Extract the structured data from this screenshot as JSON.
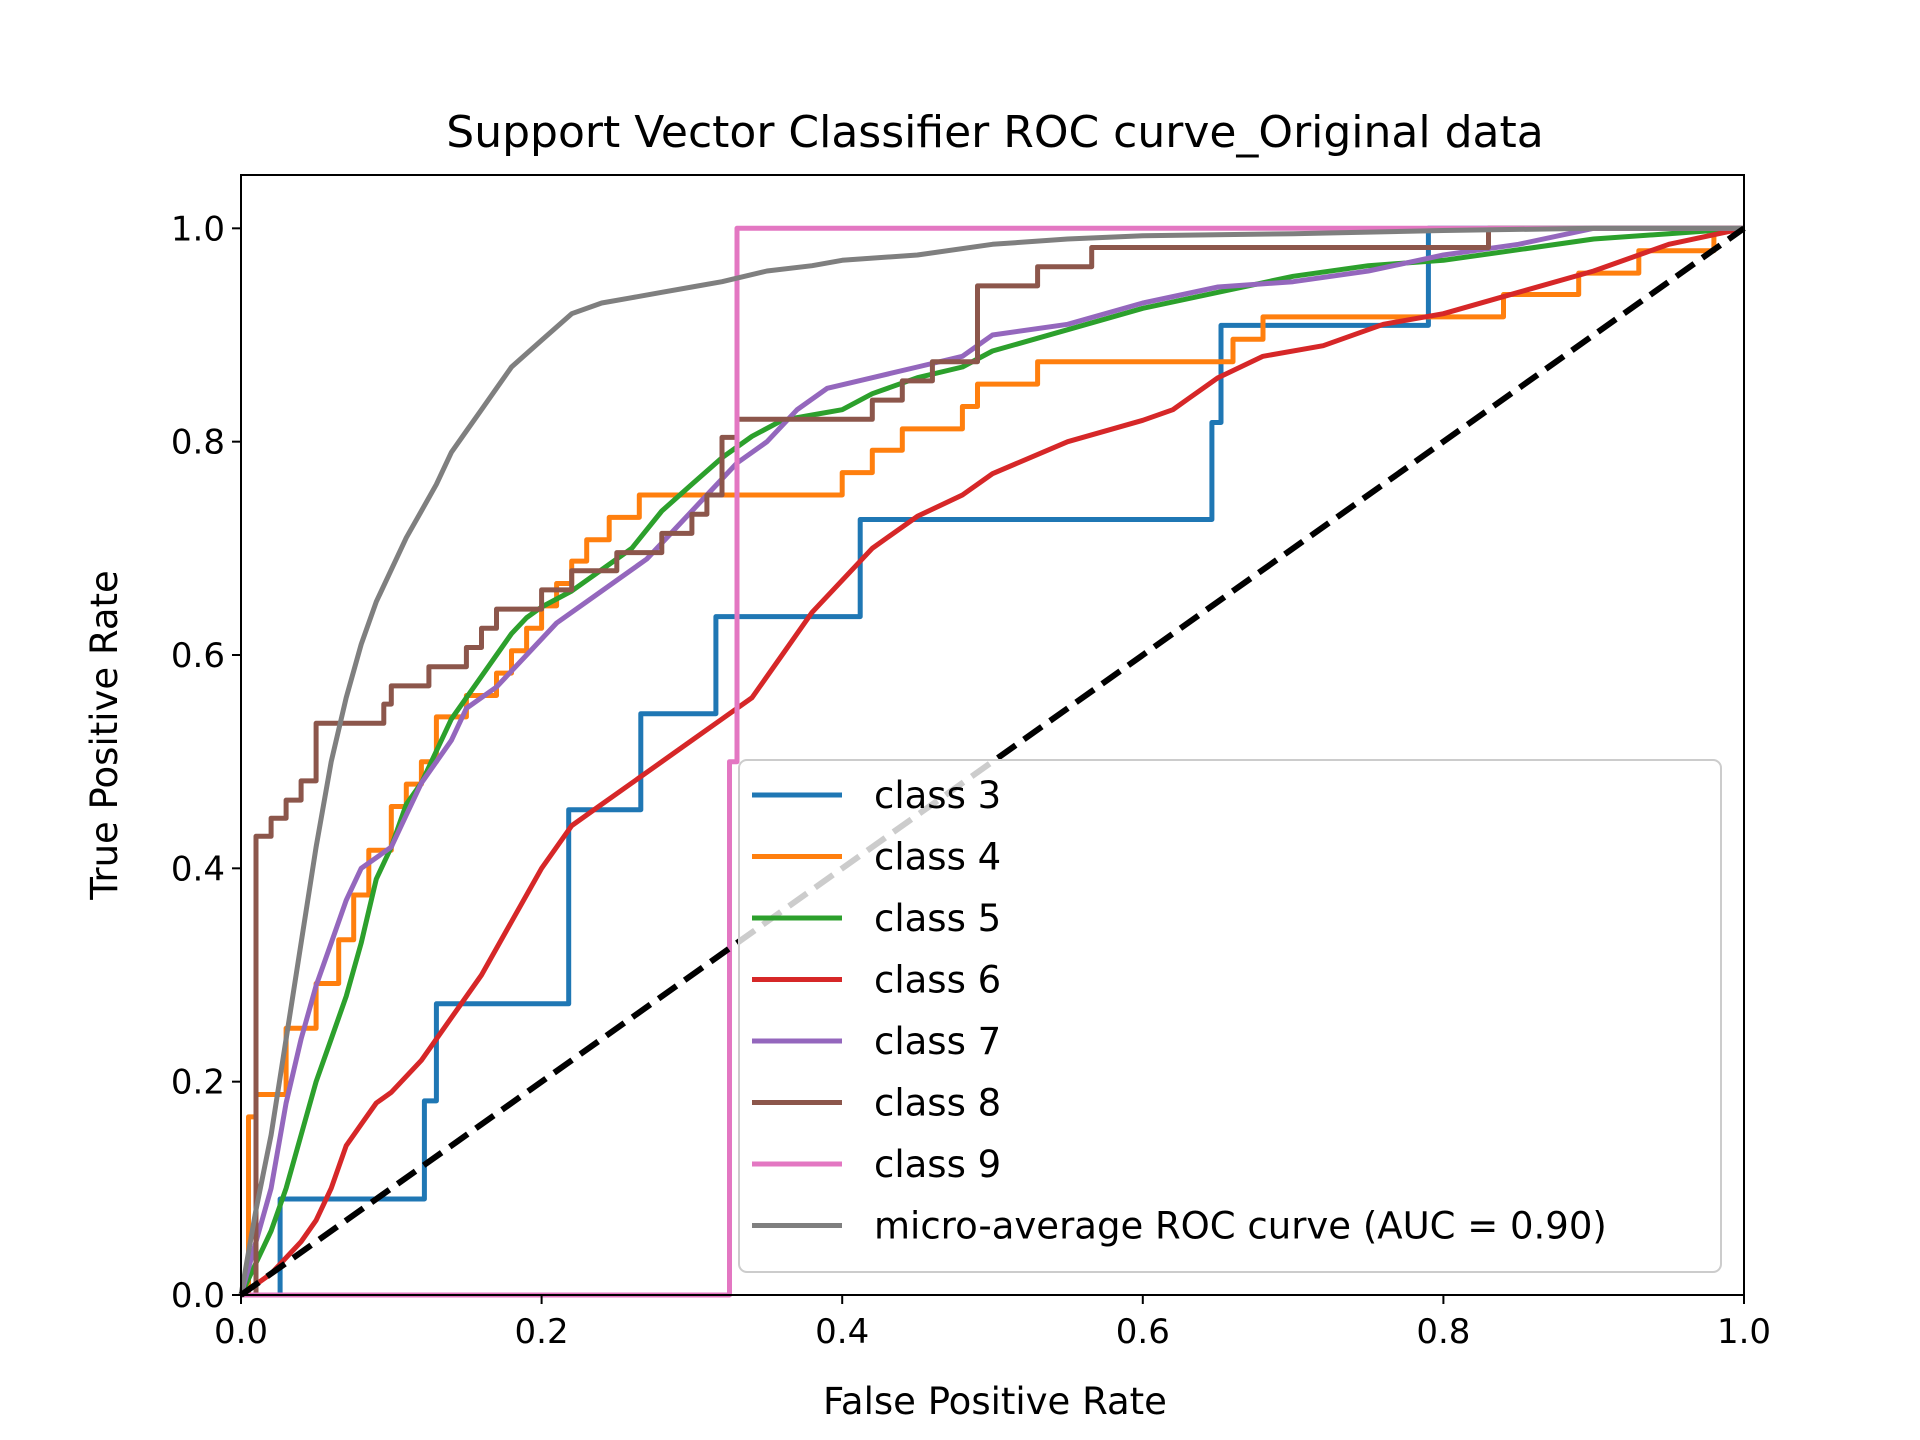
{
  "chart_data": {
    "type": "line",
    "title": "Support Vector Classifier ROC curve_Original data",
    "xlabel": "False Positive Rate",
    "ylabel": "True Positive Rate",
    "xlim": [
      0.0,
      1.0
    ],
    "ylim": [
      0.0,
      1.05
    ],
    "xticks": [
      "0.0",
      "0.2",
      "0.4",
      "0.6",
      "0.8",
      "1.0"
    ],
    "yticks": [
      "0.0",
      "0.2",
      "0.4",
      "0.6",
      "0.8",
      "1.0"
    ],
    "grid": false,
    "legend_position": "lower-right",
    "diagonal": {
      "x": [
        0,
        1
      ],
      "y": [
        0,
        1
      ],
      "color": "#000000",
      "style": "dashed"
    },
    "series": [
      {
        "name": "class 3",
        "color": "#1f77b4",
        "x": [
          0,
          0.026,
          0.026,
          0.122,
          0.122,
          0.13,
          0.13,
          0.218,
          0.218,
          0.266,
          0.266,
          0.316,
          0.316,
          0.328,
          0.328,
          0.41,
          0.41,
          0.412,
          0.412,
          0.646,
          0.646,
          0.652,
          0.652,
          0.79,
          0.79,
          1.0
        ],
        "y": [
          0,
          0,
          0.09,
          0.09,
          0.182,
          0.182,
          0.273,
          0.273,
          0.455,
          0.455,
          0.545,
          0.545,
          0.636,
          0.636,
          0.636,
          0.636,
          0.636,
          0.636,
          0.727,
          0.727,
          0.818,
          0.818,
          0.909,
          0.909,
          1.0,
          1.0
        ]
      },
      {
        "name": "class 4",
        "color": "#ff7f0e",
        "x": [
          0,
          0.005,
          0.005,
          0.01,
          0.01,
          0.03,
          0.03,
          0.05,
          0.05,
          0.065,
          0.065,
          0.075,
          0.075,
          0.085,
          0.085,
          0.1,
          0.1,
          0.11,
          0.11,
          0.12,
          0.12,
          0.13,
          0.13,
          0.15,
          0.15,
          0.17,
          0.17,
          0.18,
          0.18,
          0.19,
          0.19,
          0.2,
          0.2,
          0.21,
          0.21,
          0.22,
          0.22,
          0.23,
          0.23,
          0.245,
          0.245,
          0.255,
          0.255,
          0.265,
          0.265,
          0.28,
          0.28,
          0.4,
          0.4,
          0.42,
          0.42,
          0.44,
          0.44,
          0.48,
          0.48,
          0.49,
          0.49,
          0.5,
          0.5,
          0.51,
          0.51,
          0.53,
          0.53,
          0.65,
          0.65,
          0.66,
          0.66,
          0.68,
          0.68,
          0.74,
          0.74,
          0.84,
          0.84,
          0.89,
          0.89,
          0.93,
          0.93,
          0.98,
          0.98,
          1.0
        ],
        "y": [
          0,
          0,
          0.167,
          0.167,
          0.188,
          0.188,
          0.25,
          0.25,
          0.292,
          0.292,
          0.333,
          0.333,
          0.375,
          0.375,
          0.417,
          0.417,
          0.458,
          0.458,
          0.479,
          0.479,
          0.5,
          0.5,
          0.542,
          0.542,
          0.562,
          0.562,
          0.583,
          0.583,
          0.604,
          0.604,
          0.625,
          0.625,
          0.646,
          0.646,
          0.667,
          0.667,
          0.688,
          0.688,
          0.708,
          0.708,
          0.729,
          0.729,
          0.729,
          0.729,
          0.75,
          0.75,
          0.75,
          0.75,
          0.771,
          0.771,
          0.792,
          0.792,
          0.812,
          0.812,
          0.833,
          0.833,
          0.854,
          0.854,
          0.854,
          0.854,
          0.854,
          0.854,
          0.875,
          0.875,
          0.875,
          0.875,
          0.896,
          0.896,
          0.917,
          0.917,
          0.917,
          0.917,
          0.938,
          0.938,
          0.958,
          0.958,
          0.979,
          0.979,
          1.0,
          1.0
        ]
      },
      {
        "name": "class 5",
        "color": "#2ca02c",
        "x": [
          0,
          0.01,
          0.02,
          0.03,
          0.04,
          0.05,
          0.06,
          0.07,
          0.08,
          0.09,
          0.1,
          0.11,
          0.12,
          0.13,
          0.14,
          0.15,
          0.16,
          0.17,
          0.18,
          0.19,
          0.2,
          0.22,
          0.24,
          0.26,
          0.28,
          0.3,
          0.32,
          0.34,
          0.36,
          0.38,
          0.4,
          0.42,
          0.45,
          0.48,
          0.5,
          0.55,
          0.6,
          0.65,
          0.7,
          0.75,
          0.8,
          0.85,
          0.9,
          0.95,
          1.0
        ],
        "y": [
          0,
          0.03,
          0.06,
          0.1,
          0.15,
          0.2,
          0.24,
          0.28,
          0.33,
          0.39,
          0.42,
          0.46,
          0.48,
          0.51,
          0.54,
          0.56,
          0.58,
          0.6,
          0.62,
          0.635,
          0.645,
          0.66,
          0.68,
          0.7,
          0.735,
          0.76,
          0.785,
          0.805,
          0.82,
          0.825,
          0.83,
          0.845,
          0.86,
          0.87,
          0.885,
          0.905,
          0.925,
          0.94,
          0.955,
          0.965,
          0.97,
          0.98,
          0.99,
          0.995,
          1.0
        ]
      },
      {
        "name": "class 6",
        "color": "#d62728",
        "x": [
          0,
          0.02,
          0.04,
          0.05,
          0.06,
          0.07,
          0.08,
          0.09,
          0.1,
          0.12,
          0.14,
          0.16,
          0.18,
          0.2,
          0.22,
          0.24,
          0.26,
          0.28,
          0.3,
          0.32,
          0.34,
          0.36,
          0.38,
          0.4,
          0.42,
          0.45,
          0.48,
          0.5,
          0.55,
          0.6,
          0.62,
          0.63,
          0.65,
          0.68,
          0.72,
          0.76,
          0.8,
          0.85,
          0.9,
          0.95,
          1.0
        ],
        "y": [
          0,
          0.02,
          0.05,
          0.07,
          0.1,
          0.14,
          0.16,
          0.18,
          0.19,
          0.22,
          0.26,
          0.3,
          0.35,
          0.4,
          0.44,
          0.46,
          0.48,
          0.5,
          0.52,
          0.54,
          0.56,
          0.6,
          0.64,
          0.67,
          0.7,
          0.73,
          0.75,
          0.77,
          0.8,
          0.82,
          0.83,
          0.84,
          0.86,
          0.88,
          0.89,
          0.91,
          0.92,
          0.94,
          0.96,
          0.985,
          1.0
        ]
      },
      {
        "name": "class 7",
        "color": "#9467bd",
        "x": [
          0,
          0.01,
          0.02,
          0.03,
          0.04,
          0.05,
          0.06,
          0.07,
          0.08,
          0.09,
          0.1,
          0.11,
          0.12,
          0.13,
          0.14,
          0.15,
          0.17,
          0.19,
          0.21,
          0.23,
          0.25,
          0.27,
          0.29,
          0.31,
          0.33,
          0.35,
          0.37,
          0.39,
          0.42,
          0.45,
          0.48,
          0.5,
          0.55,
          0.6,
          0.65,
          0.7,
          0.75,
          0.8,
          0.85,
          0.9,
          1.0
        ],
        "y": [
          0,
          0.05,
          0.1,
          0.18,
          0.24,
          0.29,
          0.33,
          0.37,
          0.4,
          0.41,
          0.42,
          0.45,
          0.48,
          0.5,
          0.52,
          0.55,
          0.57,
          0.6,
          0.63,
          0.65,
          0.67,
          0.69,
          0.72,
          0.75,
          0.78,
          0.8,
          0.83,
          0.85,
          0.86,
          0.87,
          0.88,
          0.9,
          0.91,
          0.93,
          0.945,
          0.95,
          0.96,
          0.975,
          0.985,
          1.0,
          1.0
        ]
      },
      {
        "name": "class 8",
        "color": "#8c564b",
        "x": [
          0,
          0.01,
          0.01,
          0.02,
          0.02,
          0.03,
          0.03,
          0.04,
          0.04,
          0.05,
          0.05,
          0.095,
          0.095,
          0.1,
          0.1,
          0.125,
          0.125,
          0.14,
          0.14,
          0.15,
          0.15,
          0.16,
          0.16,
          0.17,
          0.17,
          0.19,
          0.19,
          0.2,
          0.2,
          0.21,
          0.21,
          0.22,
          0.22,
          0.25,
          0.25,
          0.28,
          0.28,
          0.3,
          0.3,
          0.31,
          0.31,
          0.32,
          0.32,
          0.33,
          0.33,
          0.42,
          0.42,
          0.44,
          0.44,
          0.46,
          0.46,
          0.49,
          0.49,
          0.53,
          0.53,
          0.566,
          0.566,
          0.59,
          0.59,
          0.83,
          0.83,
          1.0
        ],
        "y": [
          0,
          0,
          0.43,
          0.43,
          0.447,
          0.447,
          0.464,
          0.464,
          0.482,
          0.482,
          0.536,
          0.536,
          0.554,
          0.554,
          0.571,
          0.571,
          0.589,
          0.589,
          0.589,
          0.589,
          0.607,
          0.607,
          0.625,
          0.625,
          0.643,
          0.643,
          0.643,
          0.643,
          0.661,
          0.661,
          0.661,
          0.661,
          0.679,
          0.679,
          0.696,
          0.696,
          0.714,
          0.714,
          0.732,
          0.732,
          0.75,
          0.75,
          0.804,
          0.804,
          0.821,
          0.821,
          0.839,
          0.839,
          0.857,
          0.857,
          0.875,
          0.875,
          0.946,
          0.946,
          0.964,
          0.964,
          0.982,
          0.982,
          0.982,
          0.982,
          1.0,
          1.0
        ]
      },
      {
        "name": "class 9",
        "color": "#e377c2",
        "x": [
          0,
          0.325,
          0.325,
          0.33,
          0.33,
          1.0
        ],
        "y": [
          0,
          0,
          0.5,
          0.5,
          1.0,
          1.0
        ]
      },
      {
        "name": "micro-average ROC curve (AUC = 0.90)",
        "color": "#7f7f7f",
        "x": [
          0,
          0.01,
          0.02,
          0.03,
          0.04,
          0.05,
          0.06,
          0.07,
          0.08,
          0.09,
          0.1,
          0.11,
          0.12,
          0.13,
          0.14,
          0.15,
          0.16,
          0.17,
          0.18,
          0.2,
          0.22,
          0.24,
          0.26,
          0.28,
          0.3,
          0.32,
          0.35,
          0.38,
          0.4,
          0.45,
          0.5,
          0.55,
          0.6,
          0.7,
          0.8,
          0.9,
          1.0
        ],
        "y": [
          0,
          0.08,
          0.15,
          0.24,
          0.33,
          0.42,
          0.5,
          0.56,
          0.61,
          0.65,
          0.68,
          0.71,
          0.735,
          0.76,
          0.79,
          0.81,
          0.83,
          0.85,
          0.87,
          0.895,
          0.92,
          0.93,
          0.935,
          0.94,
          0.945,
          0.95,
          0.96,
          0.965,
          0.97,
          0.975,
          0.985,
          0.99,
          0.993,
          0.995,
          0.998,
          1.0,
          1.0
        ]
      }
    ]
  }
}
